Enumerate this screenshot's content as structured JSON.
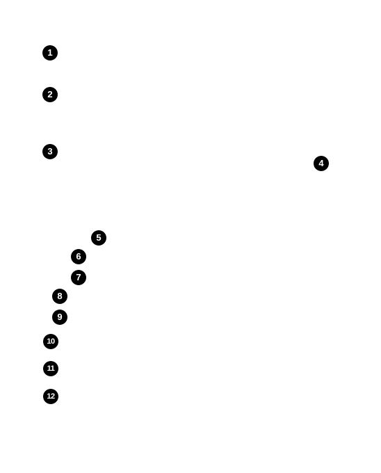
{
  "callouts": [
    "1",
    "2",
    "3",
    "4",
    "5",
    "6",
    "7",
    "8",
    "9",
    "10",
    "11",
    "12"
  ],
  "colors": {
    "background": "#ffffff",
    "marker_fill": "#000000",
    "marker_text": "#ffffff"
  }
}
